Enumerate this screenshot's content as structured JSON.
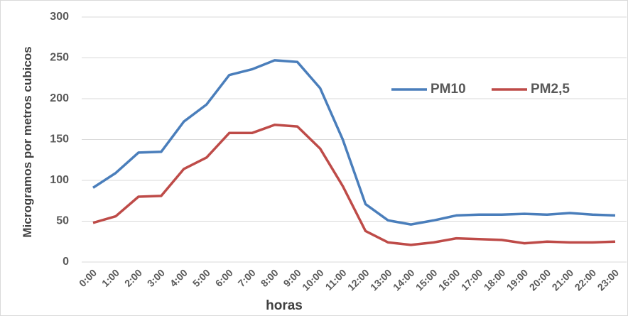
{
  "chart_data": {
    "type": "line",
    "x_label": "horas",
    "y_label": "Microgramos por metros cubicos",
    "categories": [
      "0:00",
      "1:00",
      "2:00",
      "3:00",
      "4:00",
      "5:00",
      "6:00",
      "7:00",
      "8:00",
      "9:00",
      "10:00",
      "11:00",
      "12:00",
      "13:00",
      "14:00",
      "15:00",
      "16:00",
      "17:00",
      "18:00",
      "19:00",
      "20:00",
      "21:00",
      "22:00",
      "23:00"
    ],
    "series": [
      {
        "name": "PM10",
        "color": "#4a7ebb",
        "values": [
          91,
          109,
          134,
          135,
          172,
          193,
          229,
          236,
          247,
          245,
          213,
          150,
          71,
          51,
          46,
          51,
          57,
          58,
          58,
          59,
          58,
          60,
          58,
          57
        ]
      },
      {
        "name": "PM2,5",
        "color": "#be4b48",
        "values": [
          48,
          56,
          80,
          81,
          114,
          128,
          158,
          158,
          168,
          166,
          139,
          93,
          38,
          24,
          21,
          24,
          29,
          28,
          27,
          23,
          25,
          24,
          24,
          25
        ]
      }
    ],
    "ylim": [
      0,
      300
    ],
    "yticks": [
      0,
      50,
      100,
      150,
      200,
      250,
      300
    ],
    "grid": true,
    "legend": "upper right"
  }
}
